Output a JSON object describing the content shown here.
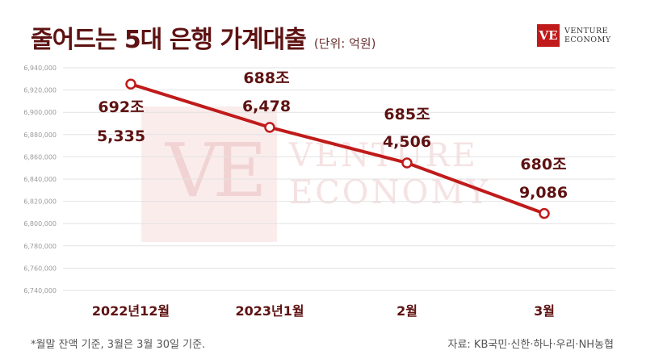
{
  "header": {
    "title": "줄어드는 5대 은행 가계대출",
    "unit": "(단위: 억원)"
  },
  "logo": {
    "mark": "VE",
    "line1": "VENTURE",
    "line2": "ECONOMY"
  },
  "watermark": {
    "mark": "VE",
    "line1": "VENTURE",
    "line2": "ECONOMY"
  },
  "footer": {
    "footnote": "*월말 잔액 기준, 3월은 3월 30일 기준.",
    "source": "자료: KB국민·신한·하나·우리·NH농협"
  },
  "colors": {
    "line": "#c01a1a",
    "label": "#5e1212",
    "grid": "#e2e2e2"
  },
  "chart_data": {
    "type": "line",
    "categories": [
      "2022년12월",
      "2023년1월",
      "2월",
      "3월"
    ],
    "values": [
      6925335,
      6886478,
      6854506,
      6809086
    ],
    "data_labels": [
      {
        "line1": "692조",
        "line2": "5,335"
      },
      {
        "line1": "688조",
        "line2": "6,478"
      },
      {
        "line1": "685조",
        "line2": "4,506"
      },
      {
        "line1": "680조",
        "line2": "9,086"
      }
    ],
    "y_ticks": [
      "6,940,000",
      "6,920,000",
      "6,900,000",
      "6,880,000",
      "6,860,000",
      "6,840,000",
      "6,820,000",
      "6,800,000",
      "6,780,000",
      "6,760,000",
      "6,740,000"
    ],
    "tick_values": [
      6940000,
      6920000,
      6900000,
      6880000,
      6860000,
      6840000,
      6820000,
      6800000,
      6780000,
      6760000,
      6740000
    ],
    "grid": true
  }
}
